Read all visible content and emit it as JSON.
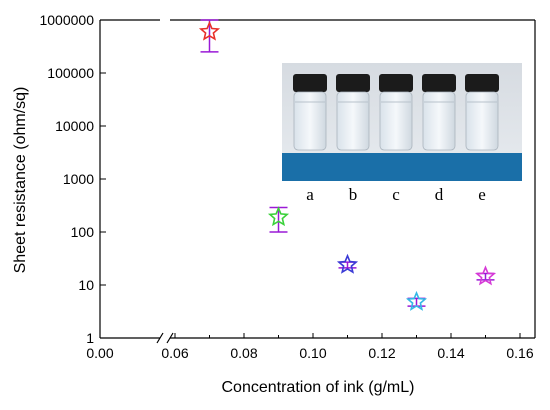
{
  "chart_data": {
    "type": "scatter",
    "title": "",
    "xlabel": "Concentration of ink (g/mL)",
    "ylabel": "Sheet resistance (ohm/sq)",
    "y_scale": "log",
    "ylim": [
      1,
      1000000
    ],
    "x_axis_break": true,
    "x_ticks": [
      "0.00",
      "0.06",
      "0.08",
      "0.10",
      "0.12",
      "0.14",
      "0.16"
    ],
    "y_ticks": [
      "1",
      "10",
      "100",
      "1000",
      "10000",
      "100000",
      "1000000"
    ],
    "marker": "star",
    "grid": false,
    "points": [
      {
        "x": 0.07,
        "y": 600000,
        "err_low": 250000,
        "err_high": 1000000,
        "color": "#e8302a"
      },
      {
        "x": 0.09,
        "y": 190,
        "err_low": 100,
        "err_high": 290,
        "color": "#3ad13a"
      },
      {
        "x": 0.11,
        "y": 24,
        "err_low": 21,
        "err_high": 27,
        "color": "#3b3bd6"
      },
      {
        "x": 0.13,
        "y": 4.8,
        "err_low": 4,
        "err_high": 5.6,
        "color": "#35b8e6"
      },
      {
        "x": 0.15,
        "y": 14.5,
        "err_low": 12.5,
        "err_high": 16.5,
        "color": "#d63ad6"
      }
    ],
    "errorbar_color": "#9a1ad6",
    "inset_labels": [
      "a",
      "b",
      "c",
      "d",
      "e"
    ]
  }
}
